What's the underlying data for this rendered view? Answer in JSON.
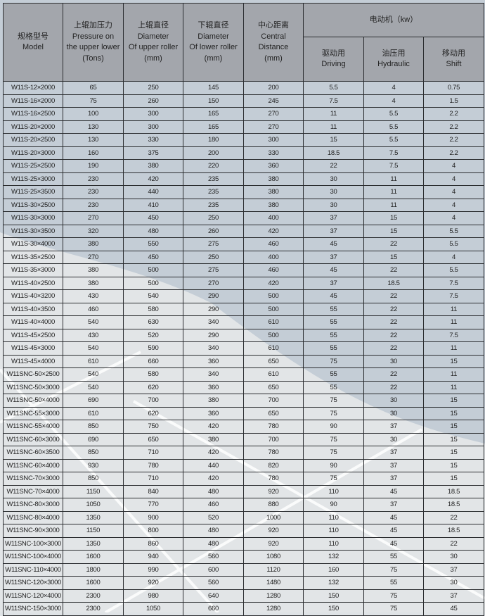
{
  "header": {
    "model": {
      "zh": "规格型号",
      "en": "Model"
    },
    "pressure": {
      "zh": "上辊加压力",
      "en1": "Pressure on",
      "en2": "the upper lower",
      "unit": "(Tons)"
    },
    "upper_diameter": {
      "zh": "上辊直径",
      "en1": "Diameter",
      "en2": "Of upper roller",
      "unit": "(mm)"
    },
    "lower_diameter": {
      "zh": "下辊直径",
      "en1": "Diameter",
      "en2": "Of lower roller",
      "unit": "(mm)"
    },
    "center_distance": {
      "zh": "中心距离",
      "en1": "Central",
      "en2": "Distance",
      "unit": "(mm)"
    },
    "motor": {
      "title": "电动机（kw）",
      "driving": {
        "zh": "驱动用",
        "en": "Driving"
      },
      "hydraulic": {
        "zh": "油压用",
        "en": "Hydraulic"
      },
      "shift": {
        "zh": "移动用",
        "en": "Shift"
      }
    }
  },
  "rows": [
    [
      "W11S-12×2000",
      "65",
      "250",
      "145",
      "200",
      "5.5",
      "4",
      "0.75"
    ],
    [
      "W11S-16×2000",
      "75",
      "260",
      "150",
      "245",
      "7.5",
      "4",
      "1.5"
    ],
    [
      "W11S-16×2500",
      "100",
      "300",
      "165",
      "270",
      "11",
      "5.5",
      "2.2"
    ],
    [
      "W11S-20×2000",
      "130",
      "300",
      "165",
      "270",
      "11",
      "5.5",
      "2.2"
    ],
    [
      "W11S-20×2500",
      "130",
      "330",
      "180",
      "300",
      "15",
      "5.5",
      "2.2"
    ],
    [
      "W11S-20×3000",
      "160",
      "375",
      "200",
      "330",
      "18.5",
      "7.5",
      "2.2"
    ],
    [
      "W11S-25×2500",
      "190",
      "380",
      "220",
      "360",
      "22",
      "7.5",
      "4"
    ],
    [
      "W11S-25×3000",
      "230",
      "420",
      "235",
      "380",
      "30",
      "11",
      "4"
    ],
    [
      "W11S-25×3500",
      "230",
      "440",
      "235",
      "380",
      "30",
      "11",
      "4"
    ],
    [
      "W11S-30×2500",
      "230",
      "410",
      "235",
      "380",
      "30",
      "11",
      "4"
    ],
    [
      "W11S-30×3000",
      "270",
      "450",
      "250",
      "400",
      "37",
      "15",
      "4"
    ],
    [
      "W11S-30×3500",
      "320",
      "480",
      "260",
      "420",
      "37",
      "15",
      "5.5"
    ],
    [
      "W11S-30×4000",
      "380",
      "550",
      "275",
      "460",
      "45",
      "22",
      "5.5"
    ],
    [
      "W11S-35×2500",
      "270",
      "450",
      "250",
      "400",
      "37",
      "15",
      "4"
    ],
    [
      "W11S-35×3000",
      "380",
      "500",
      "275",
      "460",
      "45",
      "22",
      "5.5"
    ],
    [
      "W11S-40×2500",
      "380",
      "500",
      "270",
      "420",
      "37",
      "18.5",
      "7.5"
    ],
    [
      "W11S-40×3200",
      "430",
      "540",
      "290",
      "500",
      "45",
      "22",
      "7.5"
    ],
    [
      "W11S-40×3500",
      "460",
      "580",
      "290",
      "500",
      "55",
      "22",
      "11"
    ],
    [
      "W11S-40×4000",
      "540",
      "630",
      "340",
      "610",
      "55",
      "22",
      "11"
    ],
    [
      "W11S-45×2500",
      "430",
      "520",
      "290",
      "500",
      "55",
      "22",
      "7.5"
    ],
    [
      "W11S-45×3000",
      "540",
      "590",
      "340",
      "610",
      "55",
      "22",
      "11"
    ],
    [
      "W11S-45×4000",
      "610",
      "660",
      "360",
      "650",
      "75",
      "30",
      "15"
    ],
    [
      "W11SNC-50×2500",
      "540",
      "580",
      "340",
      "610",
      "55",
      "22",
      "11"
    ],
    [
      "W11SNC-50×3000",
      "540",
      "620",
      "360",
      "650",
      "55",
      "22",
      "11"
    ],
    [
      "W11SNC-50×4000",
      "690",
      "700",
      "380",
      "700",
      "75",
      "30",
      "15"
    ],
    [
      "W11SNC-55×3000",
      "610",
      "620",
      "360",
      "650",
      "75",
      "30",
      "15"
    ],
    [
      "W11SNC-55×4000",
      "850",
      "750",
      "420",
      "780",
      "90",
      "37",
      "15"
    ],
    [
      "W11SNC-60×3000",
      "690",
      "650",
      "380",
      "700",
      "75",
      "30",
      "15"
    ],
    [
      "W11SNC-60×3500",
      "850",
      "710",
      "420",
      "780",
      "75",
      "37",
      "15"
    ],
    [
      "W11SNC-60×4000",
      "930",
      "780",
      "440",
      "820",
      "90",
      "37",
      "15"
    ],
    [
      "W11SNC-70×3000",
      "850",
      "710",
      "420",
      "780",
      "75",
      "37",
      "15"
    ],
    [
      "W11SNC-70×4000",
      "1150",
      "840",
      "480",
      "920",
      "110",
      "45",
      "18.5"
    ],
    [
      "W11SNC-80×3000",
      "1050",
      "770",
      "460",
      "880",
      "90",
      "37",
      "18.5"
    ],
    [
      "W11SNC-80×4000",
      "1350",
      "900",
      "520",
      "1000",
      "110",
      "45",
      "22"
    ],
    [
      "W11SNC-90×3000",
      "1150",
      "800",
      "480",
      "920",
      "110",
      "45",
      "18.5"
    ],
    [
      "W11SNC-100×3000",
      "1350",
      "860",
      "480",
      "920",
      "110",
      "45",
      "22"
    ],
    [
      "W11SNC-100×4000",
      "1600",
      "940",
      "560",
      "1080",
      "132",
      "55",
      "30"
    ],
    [
      "W11SNC-110×4000",
      "1800",
      "990",
      "600",
      "1120",
      "160",
      "75",
      "37"
    ],
    [
      "W11SNC-120×3000",
      "1600",
      "920",
      "560",
      "1480",
      "132",
      "55",
      "30"
    ],
    [
      "W11SNC-120×4000",
      "2300",
      "980",
      "640",
      "1280",
      "150",
      "75",
      "37"
    ],
    [
      "W11SNC-150×3000",
      "2300",
      "1050",
      "660",
      "1280",
      "150",
      "75",
      "45"
    ]
  ],
  "colors": {
    "header_bg": "#a0a3a8",
    "row_bg": "#c5ced7",
    "light_bg": "#e3e6e8",
    "grid": "#2b2d30"
  }
}
